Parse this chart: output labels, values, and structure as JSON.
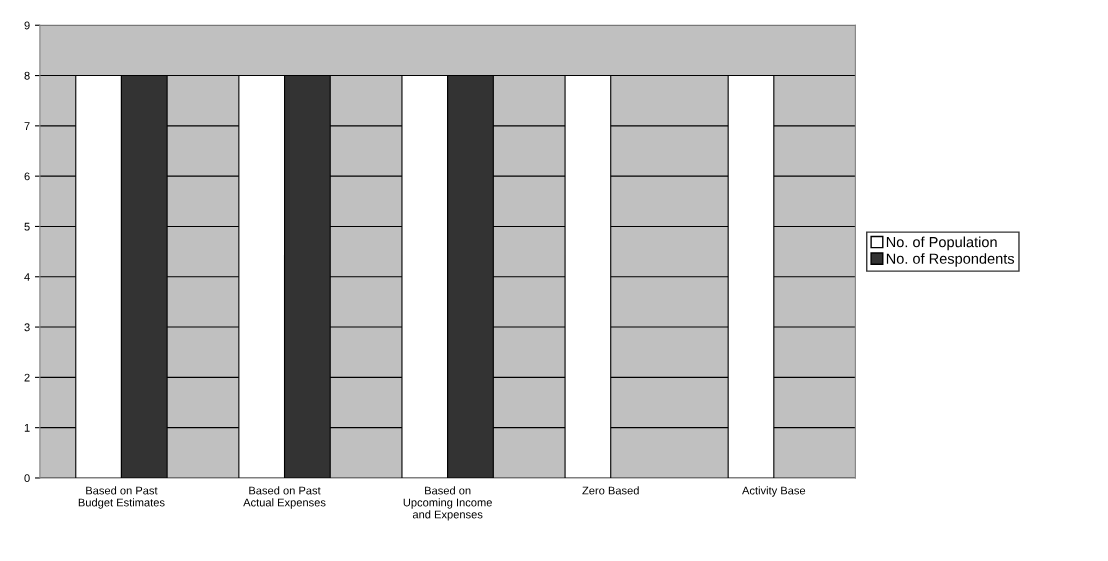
{
  "chart_data": {
    "type": "bar",
    "categories": [
      "Based on Past\nBudget Estimates",
      "Based on Past\nActual Expenses",
      "Based on\nUpcoming Income\nand Expenses",
      "Zero Based",
      "Activity Base"
    ],
    "series": [
      {
        "name": "No. of Population",
        "color": "#ffffff",
        "values": [
          8,
          8,
          8,
          8,
          8
        ]
      },
      {
        "name": "No. of Respondents",
        "color": "#333333",
        "values": [
          8,
          8,
          8,
          null,
          null
        ]
      }
    ],
    "ylim": [
      0,
      9
    ],
    "yticks": [
      0,
      1,
      2,
      3,
      4,
      5,
      6,
      7,
      8,
      9
    ],
    "grid": "y",
    "legend": "right"
  }
}
